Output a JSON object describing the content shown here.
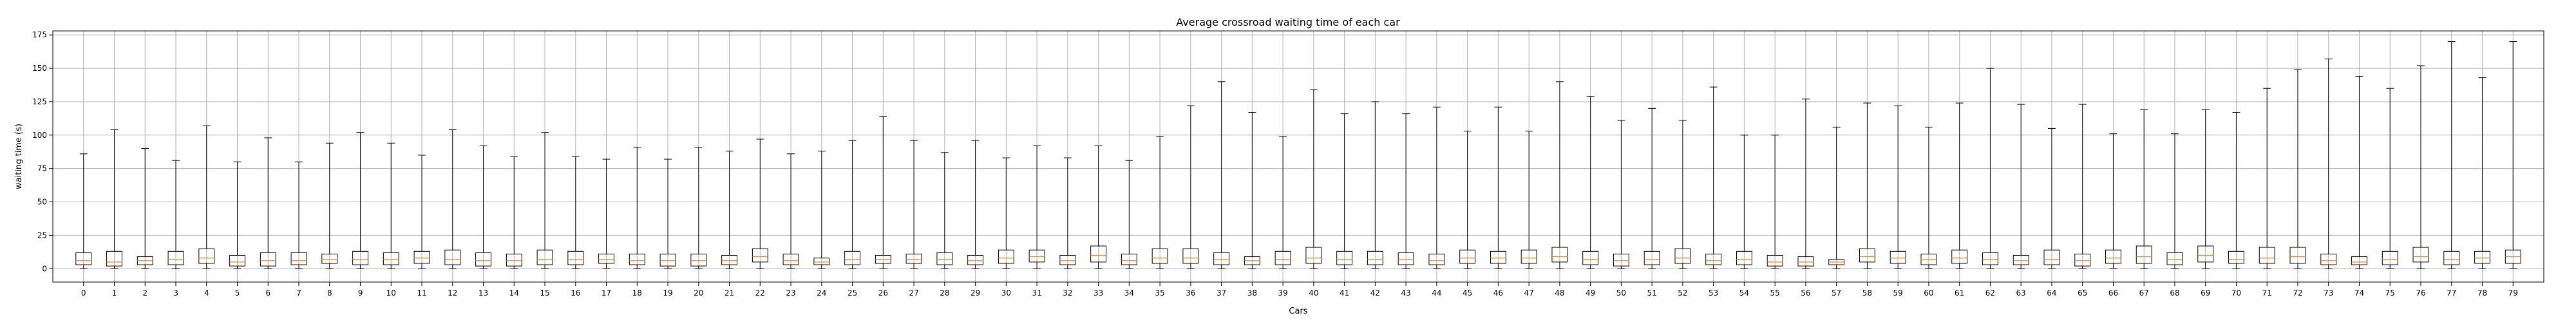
{
  "chart_data": {
    "type": "box",
    "title": "Average crossroad waiting time of each car",
    "xlabel": "Cars",
    "ylabel": "waiting time (s)",
    "ylim": [
      -10,
      178
    ],
    "yticks": [
      0,
      25,
      50,
      75,
      100,
      125,
      150,
      175
    ],
    "grid": true,
    "median_color": "#ff7f0e",
    "categories": [
      "0",
      "1",
      "2",
      "3",
      "4",
      "5",
      "6",
      "7",
      "8",
      "9",
      "10",
      "11",
      "12",
      "13",
      "14",
      "15",
      "16",
      "17",
      "18",
      "19",
      "20",
      "21",
      "22",
      "23",
      "24",
      "25",
      "26",
      "27",
      "28",
      "29",
      "30",
      "31",
      "32",
      "33",
      "34",
      "35",
      "36",
      "37",
      "38",
      "39",
      "40",
      "41",
      "42",
      "43",
      "44",
      "45",
      "46",
      "47",
      "48",
      "49",
      "50",
      "51",
      "52",
      "53",
      "54",
      "55",
      "56",
      "57",
      "58",
      "59",
      "60",
      "61",
      "62",
      "63",
      "64",
      "65",
      "66",
      "67",
      "68",
      "69",
      "70",
      "71",
      "72",
      "73",
      "74",
      "75",
      "76",
      "77",
      "78",
      "79"
    ],
    "boxes": [
      {
        "min": 0,
        "q1": 3,
        "median": 6,
        "q3": 12,
        "max": 86
      },
      {
        "min": 0,
        "q1": 2,
        "median": 5,
        "q3": 13,
        "max": 104
      },
      {
        "min": 0,
        "q1": 3,
        "median": 6,
        "q3": 9,
        "max": 90
      },
      {
        "min": 0,
        "q1": 3,
        "median": 7,
        "q3": 13,
        "max": 81
      },
      {
        "min": 0,
        "q1": 4,
        "median": 8,
        "q3": 15,
        "max": 107
      },
      {
        "min": 0,
        "q1": 2,
        "median": 5,
        "q3": 10,
        "max": 80
      },
      {
        "min": 0,
        "q1": 2,
        "median": 6,
        "q3": 12,
        "max": 98
      },
      {
        "min": 0,
        "q1": 3,
        "median": 6,
        "q3": 12,
        "max": 80
      },
      {
        "min": 0,
        "q1": 4,
        "median": 7,
        "q3": 11,
        "max": 94
      },
      {
        "min": 0,
        "q1": 3,
        "median": 7,
        "q3": 13,
        "max": 102
      },
      {
        "min": 0,
        "q1": 3,
        "median": 7,
        "q3": 12,
        "max": 94
      },
      {
        "min": 0,
        "q1": 4,
        "median": 8,
        "q3": 13,
        "max": 85
      },
      {
        "min": 0,
        "q1": 3,
        "median": 7,
        "q3": 14,
        "max": 104
      },
      {
        "min": 0,
        "q1": 2,
        "median": 6,
        "q3": 12,
        "max": 92
      },
      {
        "min": 0,
        "q1": 2,
        "median": 6,
        "q3": 11,
        "max": 84
      },
      {
        "min": 0,
        "q1": 3,
        "median": 7,
        "q3": 14,
        "max": 102
      },
      {
        "min": 0,
        "q1": 3,
        "median": 7,
        "q3": 13,
        "max": 84
      },
      {
        "min": 0,
        "q1": 4,
        "median": 7,
        "q3": 11,
        "max": 82
      },
      {
        "min": 0,
        "q1": 3,
        "median": 6,
        "q3": 11,
        "max": 91
      },
      {
        "min": 0,
        "q1": 2,
        "median": 6,
        "q3": 11,
        "max": 82
      },
      {
        "min": 0,
        "q1": 2,
        "median": 6,
        "q3": 11,
        "max": 91
      },
      {
        "min": 0,
        "q1": 3,
        "median": 6,
        "q3": 10,
        "max": 88
      },
      {
        "min": 0,
        "q1": 5,
        "median": 9,
        "q3": 15,
        "max": 97
      },
      {
        "min": 0,
        "q1": 3,
        "median": 6,
        "q3": 11,
        "max": 86
      },
      {
        "min": 0,
        "q1": 3,
        "median": 5,
        "q3": 8,
        "max": 88
      },
      {
        "min": 0,
        "q1": 3,
        "median": 7,
        "q3": 13,
        "max": 96
      },
      {
        "min": 0,
        "q1": 4,
        "median": 7,
        "q3": 10,
        "max": 114
      },
      {
        "min": 0,
        "q1": 4,
        "median": 7,
        "q3": 11,
        "max": 96
      },
      {
        "min": 0,
        "q1": 3,
        "median": 7,
        "q3": 12,
        "max": 87
      },
      {
        "min": 0,
        "q1": 3,
        "median": 6,
        "q3": 10,
        "max": 96
      },
      {
        "min": 0,
        "q1": 4,
        "median": 8,
        "q3": 14,
        "max": 83
      },
      {
        "min": 0,
        "q1": 5,
        "median": 9,
        "q3": 14,
        "max": 92
      },
      {
        "min": 0,
        "q1": 3,
        "median": 6,
        "q3": 10,
        "max": 83
      },
      {
        "min": 0,
        "q1": 5,
        "median": 10,
        "q3": 17,
        "max": 92
      },
      {
        "min": 0,
        "q1": 3,
        "median": 6,
        "q3": 11,
        "max": 81
      },
      {
        "min": 0,
        "q1": 4,
        "median": 8,
        "q3": 15,
        "max": 99
      },
      {
        "min": 0,
        "q1": 4,
        "median": 8,
        "q3": 15,
        "max": 122
      },
      {
        "min": 0,
        "q1": 3,
        "median": 7,
        "q3": 12,
        "max": 140
      },
      {
        "min": 0,
        "q1": 3,
        "median": 6,
        "q3": 9,
        "max": 117
      },
      {
        "min": 0,
        "q1": 3,
        "median": 7,
        "q3": 13,
        "max": 99
      },
      {
        "min": 0,
        "q1": 4,
        "median": 8,
        "q3": 16,
        "max": 134
      },
      {
        "min": 0,
        "q1": 3,
        "median": 7,
        "q3": 13,
        "max": 116
      },
      {
        "min": 0,
        "q1": 3,
        "median": 7,
        "q3": 13,
        "max": 125
      },
      {
        "min": 0,
        "q1": 3,
        "median": 7,
        "q3": 12,
        "max": 116
      },
      {
        "min": 0,
        "q1": 3,
        "median": 6,
        "q3": 11,
        "max": 121
      },
      {
        "min": 0,
        "q1": 4,
        "median": 8,
        "q3": 14,
        "max": 103
      },
      {
        "min": 0,
        "q1": 4,
        "median": 8,
        "q3": 13,
        "max": 121
      },
      {
        "min": 0,
        "q1": 4,
        "median": 8,
        "q3": 14,
        "max": 103
      },
      {
        "min": 0,
        "q1": 5,
        "median": 9,
        "q3": 16,
        "max": 140
      },
      {
        "min": 0,
        "q1": 3,
        "median": 7,
        "q3": 13,
        "max": 129
      },
      {
        "min": 0,
        "q1": 2,
        "median": 6,
        "q3": 11,
        "max": 111
      },
      {
        "min": 0,
        "q1": 3,
        "median": 7,
        "q3": 13,
        "max": 120
      },
      {
        "min": 0,
        "q1": 4,
        "median": 8,
        "q3": 15,
        "max": 111
      },
      {
        "min": 0,
        "q1": 3,
        "median": 6,
        "q3": 11,
        "max": 136
      },
      {
        "min": 0,
        "q1": 3,
        "median": 7,
        "q3": 13,
        "max": 100
      },
      {
        "min": 0,
        "q1": 2,
        "median": 5,
        "q3": 10,
        "max": 100
      },
      {
        "min": 0,
        "q1": 2,
        "median": 5,
        "q3": 9,
        "max": 127
      },
      {
        "min": 0,
        "q1": 3,
        "median": 5,
        "q3": 7,
        "max": 106
      },
      {
        "min": 0,
        "q1": 5,
        "median": 9,
        "q3": 15,
        "max": 124
      },
      {
        "min": 0,
        "q1": 4,
        "median": 8,
        "q3": 13,
        "max": 122
      },
      {
        "min": 0,
        "q1": 3,
        "median": 7,
        "q3": 11,
        "max": 106
      },
      {
        "min": 0,
        "q1": 4,
        "median": 8,
        "q3": 14,
        "max": 124
      },
      {
        "min": 0,
        "q1": 3,
        "median": 7,
        "q3": 12,
        "max": 150
      },
      {
        "min": 0,
        "q1": 3,
        "median": 6,
        "q3": 10,
        "max": 123
      },
      {
        "min": 0,
        "q1": 3,
        "median": 7,
        "q3": 14,
        "max": 105
      },
      {
        "min": 0,
        "q1": 2,
        "median": 6,
        "q3": 11,
        "max": 123
      },
      {
        "min": 0,
        "q1": 4,
        "median": 8,
        "q3": 14,
        "max": 101
      },
      {
        "min": 0,
        "q1": 4,
        "median": 9,
        "q3": 17,
        "max": 119
      },
      {
        "min": 0,
        "q1": 3,
        "median": 7,
        "q3": 12,
        "max": 101
      },
      {
        "min": 0,
        "q1": 5,
        "median": 10,
        "q3": 17,
        "max": 119
      },
      {
        "min": 0,
        "q1": 4,
        "median": 7,
        "q3": 13,
        "max": 117
      },
      {
        "min": 0,
        "q1": 4,
        "median": 8,
        "q3": 16,
        "max": 135
      },
      {
        "min": 0,
        "q1": 4,
        "median": 9,
        "q3": 16,
        "max": 149
      },
      {
        "min": 0,
        "q1": 3,
        "median": 6,
        "q3": 11,
        "max": 157
      },
      {
        "min": 0,
        "q1": 3,
        "median": 5,
        "q3": 9,
        "max": 144
      },
      {
        "min": 0,
        "q1": 3,
        "median": 7,
        "q3": 13,
        "max": 135
      },
      {
        "min": 0,
        "q1": 5,
        "median": 9,
        "q3": 16,
        "max": 152
      },
      {
        "min": 0,
        "q1": 3,
        "median": 7,
        "q3": 13,
        "max": 170
      },
      {
        "min": 0,
        "q1": 4,
        "median": 8,
        "q3": 13,
        "max": 143
      },
      {
        "min": 0,
        "q1": 4,
        "median": 9,
        "q3": 14,
        "max": 170
      }
    ]
  }
}
